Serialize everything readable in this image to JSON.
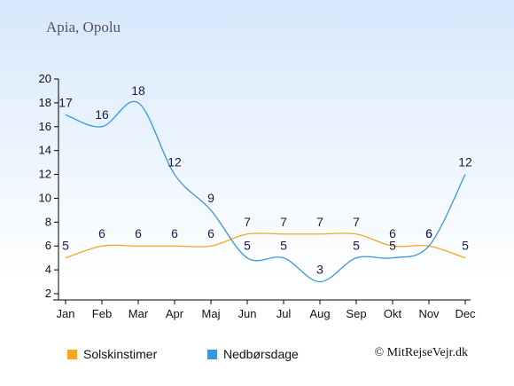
{
  "header": {
    "title": "Apia, Opolu"
  },
  "legend": {
    "sun_label": "Solskinstimer",
    "rain_label": "Nedbørsdage"
  },
  "footer": {
    "credit": "© MitRejseVejr.dk"
  },
  "colors": {
    "sun": "#F5A623",
    "rain": "#3A96DD",
    "background_top": "#D6E8FB",
    "background_bottom": "#FFFFFF",
    "axis": "#000000",
    "label": "#1A1A4A"
  },
  "chart_data": {
    "type": "line",
    "categories": [
      "Jan",
      "Feb",
      "Mar",
      "Apr",
      "Maj",
      "Jun",
      "Jul",
      "Aug",
      "Sep",
      "Okt",
      "Nov",
      "Dec"
    ],
    "series": [
      {
        "name": "Solskinstimer",
        "color": "#F5A623",
        "values": [
          5,
          6,
          6,
          6,
          6,
          7,
          7,
          7,
          7,
          6,
          6,
          5
        ]
      },
      {
        "name": "Nedbørsdage",
        "color": "#3A96DD",
        "values": [
          17,
          16,
          18,
          12,
          9,
          5,
          5,
          3,
          5,
          5,
          6,
          12
        ]
      }
    ],
    "yticks": [
      2,
      4,
      6,
      8,
      10,
      12,
      14,
      16,
      18,
      20
    ],
    "ylim": [
      2,
      20
    ],
    "grid": false,
    "legend_position": "bottom"
  }
}
